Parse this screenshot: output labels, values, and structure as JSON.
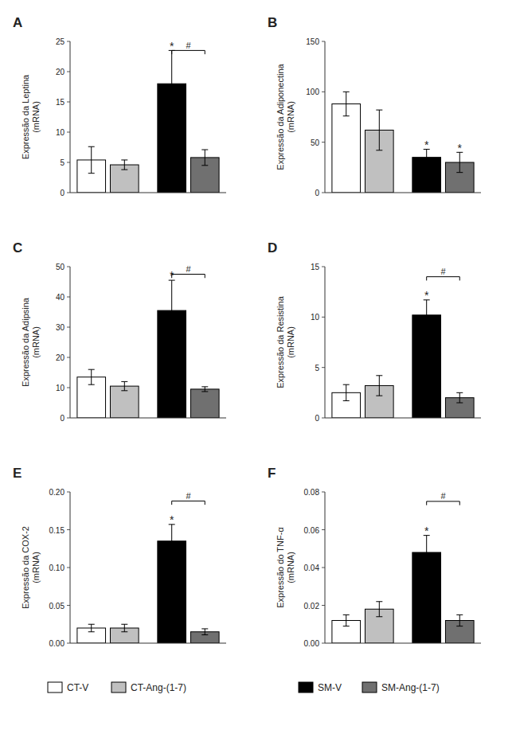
{
  "chart_data": [
    {
      "type": "bar",
      "title": "A",
      "ylabel": "Expressão da Leptina\n(mRNA)",
      "categories": [
        "CT-V",
        "CT-Ang-(1-7)",
        "SM-V",
        "SM-Ang-(1-7)"
      ],
      "values": [
        5.4,
        4.6,
        18.0,
        5.8
      ],
      "errors": [
        2.2,
        0.8,
        5.5,
        1.3
      ],
      "colors": [
        "white",
        "#c0c0c0",
        "black",
        "#707070"
      ],
      "ylim": [
        0,
        25
      ],
      "yticks": [
        0,
        5,
        10,
        15,
        20,
        25
      ],
      "tick_labels": "y",
      "annotations": [
        {
          "text": "*",
          "category": "SM-V"
        },
        {
          "text": "#",
          "from": "SM-V",
          "to": "SM-Ang-(1-7)",
          "y": 23.5
        }
      ]
    },
    {
      "type": "bar",
      "title": "B",
      "ylabel": "Expressão da Adiponectina\n(mRNA)",
      "categories": [
        "CT-V",
        "CT-Ang-(1-7)",
        "SM-V",
        "SM-Ang-(1-7)"
      ],
      "values": [
        88,
        62,
        35,
        30
      ],
      "errors": [
        12,
        20,
        8,
        10
      ],
      "colors": [
        "white",
        "#c0c0c0",
        "black",
        "#707070"
      ],
      "ylim": [
        0,
        150
      ],
      "yticks": [
        0,
        50,
        100,
        150
      ],
      "tick_labels": "y",
      "annotations": [
        {
          "text": "*",
          "category": "SM-V"
        },
        {
          "text": "*",
          "category": "SM-Ang-(1-7)"
        }
      ]
    },
    {
      "type": "bar",
      "title": "C",
      "ylabel": "Expressão da Adipsina\n(mRNA)",
      "categories": [
        "CT-V",
        "CT-Ang-(1-7)",
        "SM-V",
        "SM-Ang-(1-7)"
      ],
      "values": [
        13.5,
        10.5,
        35.5,
        9.5
      ],
      "errors": [
        2.5,
        1.5,
        10.0,
        0.8
      ],
      "colors": [
        "white",
        "#c0c0c0",
        "black",
        "#707070"
      ],
      "ylim": [
        0,
        50
      ],
      "yticks": [
        0,
        10,
        20,
        30,
        40,
        50
      ],
      "tick_labels": "y",
      "annotations": [
        {
          "text": "*",
          "category": "SM-V"
        },
        {
          "text": "#",
          "from": "SM-V",
          "to": "SM-Ang-(1-7)",
          "y": 47.5
        }
      ]
    },
    {
      "type": "bar",
      "title": "D",
      "ylabel": "Expressão da Resistina\n(mRNA)",
      "categories": [
        "CT-V",
        "CT-Ang-(1-7)",
        "SM-V",
        "SM-Ang-(1-7)"
      ],
      "values": [
        2.5,
        3.2,
        10.2,
        2.0
      ],
      "errors": [
        0.8,
        1.0,
        1.5,
        0.5
      ],
      "colors": [
        "white",
        "#c0c0c0",
        "black",
        "#707070"
      ],
      "ylim": [
        0,
        15
      ],
      "yticks": [
        0,
        5,
        10,
        15
      ],
      "tick_labels": "y",
      "annotations": [
        {
          "text": "*",
          "category": "SM-V"
        },
        {
          "text": "#",
          "from": "SM-V",
          "to": "SM-Ang-(1-7)",
          "y": 14.0
        }
      ]
    },
    {
      "type": "bar",
      "title": "E",
      "ylabel": "Expressão da COX-2\n(mRNA)",
      "categories": [
        "CT-V",
        "CT-Ang-(1-7)",
        "SM-V",
        "SM-Ang-(1-7)"
      ],
      "values": [
        0.02,
        0.02,
        0.135,
        0.015
      ],
      "errors": [
        0.005,
        0.005,
        0.022,
        0.004
      ],
      "colors": [
        "white",
        "#c0c0c0",
        "black",
        "#707070"
      ],
      "ylim": [
        0,
        0.2
      ],
      "yticks": [
        {
          "value": 0.0,
          "label": "0.00"
        },
        {
          "value": 0.05,
          "label": "0.05"
        },
        {
          "value": 0.1,
          "label": "0.10"
        },
        {
          "value": 0.15,
          "label": "0.15"
        },
        {
          "value": 0.2,
          "label": "0.20"
        }
      ],
      "tick_labels": "y",
      "annotations": [
        {
          "text": "*",
          "category": "SM-V"
        },
        {
          "text": "#",
          "from": "SM-V",
          "to": "SM-Ang-(1-7)",
          "y": 0.188
        }
      ]
    },
    {
      "type": "bar",
      "title": "F",
      "ylabel": "Expressão do TNF-α\n(mRNA)",
      "categories": [
        "CT-V",
        "CT-Ang-(1-7)",
        "SM-V",
        "SM-Ang-(1-7)"
      ],
      "values": [
        0.012,
        0.018,
        0.048,
        0.012
      ],
      "errors": [
        0.003,
        0.004,
        0.009,
        0.003
      ],
      "colors": [
        "white",
        "#c0c0c0",
        "black",
        "#707070"
      ],
      "ylim": [
        0,
        0.08
      ],
      "yticks": [
        {
          "value": 0.0,
          "label": "0.00"
        },
        {
          "value": 0.02,
          "label": "0.02"
        },
        {
          "value": 0.04,
          "label": "0.04"
        },
        {
          "value": 0.06,
          "label": "0.06"
        },
        {
          "value": 0.08,
          "label": "0.08"
        }
      ],
      "tick_labels": "y",
      "annotations": [
        {
          "text": "*",
          "category": "SM-V"
        },
        {
          "text": "#",
          "from": "SM-V",
          "to": "SM-Ang-(1-7)",
          "y": 0.075
        }
      ]
    }
  ]
}
